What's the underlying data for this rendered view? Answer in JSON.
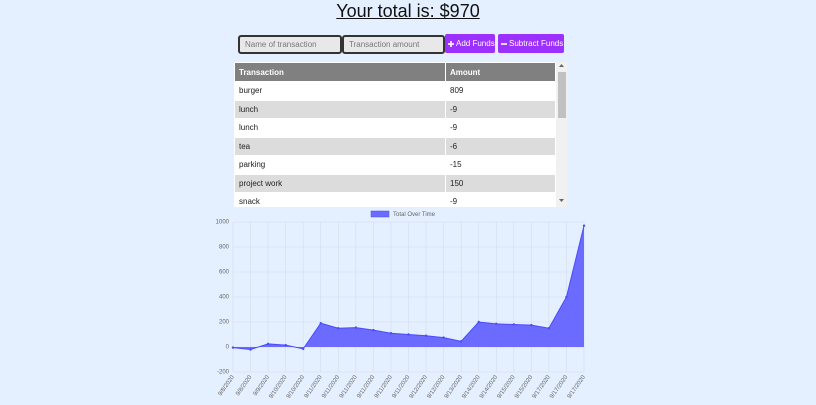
{
  "header": {
    "title": "Your total is: $970"
  },
  "form": {
    "name_placeholder": "Name of transaction",
    "amount_placeholder": "Transaction amount",
    "add_button": "Add Funds",
    "subtract_button": "Subtract Funds"
  },
  "table": {
    "columns": [
      "Transaction",
      "Amount"
    ],
    "rows": [
      [
        "burger",
        809
      ],
      [
        "lunch",
        -9
      ],
      [
        "lunch",
        -9
      ],
      [
        "tea",
        -6
      ],
      [
        "parking",
        -15
      ],
      [
        "project work",
        150
      ],
      [
        "snack",
        -9
      ]
    ]
  },
  "chart_data": {
    "type": "area",
    "series": [
      {
        "name": "Total Over Time",
        "color": "#6b6bff",
        "values": [
          -5,
          -20,
          25,
          15,
          -15,
          190,
          150,
          155,
          135,
          110,
          100,
          90,
          75,
          45,
          200,
          185,
          180,
          175,
          150,
          400,
          970
        ]
      }
    ],
    "categories": [
      "9/8/2020",
      "9/8/2020",
      "9/9/2020",
      "9/10/2020",
      "9/10/2020",
      "9/11/2020",
      "9/11/2020",
      "9/11/2020",
      "9/11/2020",
      "9/11/2020",
      "9/11/2020",
      "9/12/2020",
      "9/12/2020",
      "9/13/2020",
      "9/14/2020",
      "9/14/2020",
      "9/15/2020",
      "9/15/2020",
      "9/17/2020",
      "9/17/2020",
      "9/17/2020"
    ],
    "ylim": [
      -200,
      1000
    ],
    "yticks": [
      -200,
      0,
      200,
      400,
      600,
      800,
      1000
    ],
    "grid": true,
    "legend": "top"
  }
}
